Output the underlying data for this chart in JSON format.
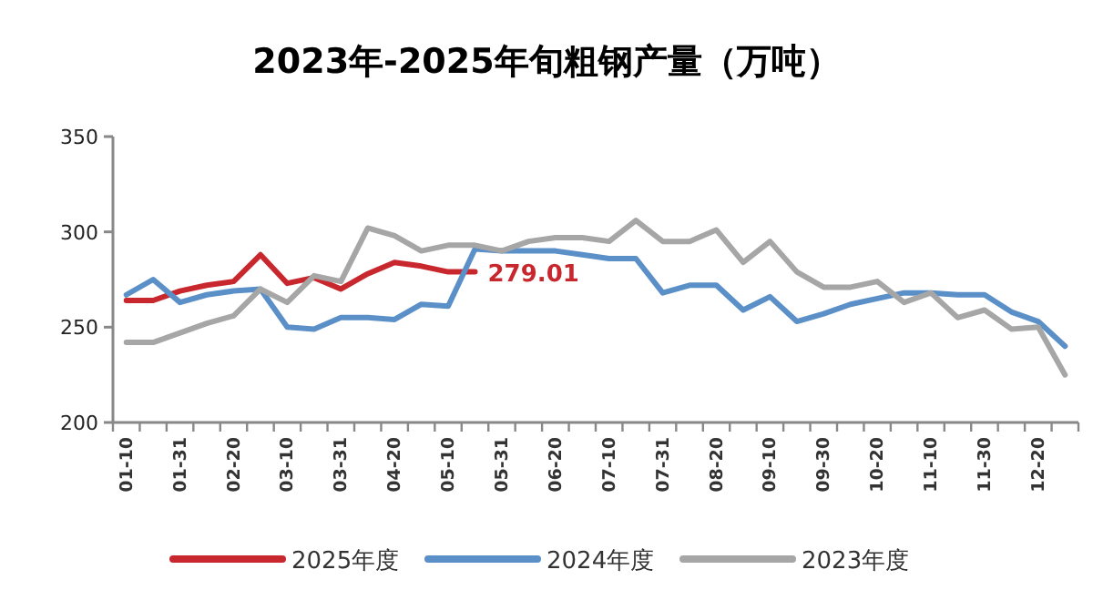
{
  "chart_data": {
    "type": "line",
    "title": "2023年-2025年旬粗钢产量（万吨）",
    "categories": [
      "01-10",
      null,
      "01-31",
      null,
      "02-20",
      null,
      "03-10",
      null,
      "03-31",
      null,
      "04-20",
      null,
      "05-10",
      null,
      "05-31",
      null,
      "06-20",
      null,
      "07-10",
      null,
      "07-31",
      null,
      "08-20",
      null,
      "09-10",
      null,
      "09-30",
      null,
      "10-20",
      null,
      "11-10",
      null,
      "11-30",
      null,
      "12-20",
      null
    ],
    "series": [
      {
        "name": "2025年度",
        "color": "#c8282d",
        "values": [
          264,
          264,
          269,
          272,
          274,
          288,
          273,
          276,
          270,
          278,
          284,
          282,
          279,
          279.01,
          null,
          null,
          null,
          null,
          null,
          null,
          null,
          null,
          null,
          null,
          null,
          null,
          null,
          null,
          null,
          null,
          null,
          null,
          null,
          null,
          null,
          null
        ],
        "value_labels": [
          null,
          null,
          null,
          null,
          null,
          null,
          null,
          null,
          null,
          null,
          null,
          null,
          null,
          "279.01",
          null,
          null,
          null,
          null,
          null,
          null,
          null,
          null,
          null,
          null,
          null,
          null,
          null,
          null,
          null,
          null,
          null,
          null,
          null,
          null,
          null,
          null
        ]
      },
      {
        "name": "2024年度",
        "color": "#5b8fc7",
        "values": [
          267,
          275,
          263,
          267,
          269,
          270,
          250,
          249,
          255,
          255,
          254,
          262,
          261,
          291,
          290,
          290,
          290,
          288,
          286,
          286,
          268,
          272,
          272,
          259,
          266,
          253,
          257,
          262,
          265,
          268,
          268,
          267,
          267,
          258,
          253,
          240
        ]
      },
      {
        "name": "2023年度",
        "color": "#a6a6a6",
        "values": [
          242,
          242,
          247,
          252,
          256,
          270,
          263,
          277,
          274,
          302,
          298,
          290,
          293,
          293,
          290,
          295,
          297,
          297,
          295,
          306,
          295,
          295,
          301,
          284,
          295,
          279,
          271,
          271,
          274,
          263,
          268,
          255,
          259,
          249,
          250,
          225
        ]
      }
    ],
    "ylim": [
      200,
      350
    ],
    "yticks": [
      200,
      250,
      300,
      350
    ],
    "legend": "bottom",
    "grid": false
  }
}
